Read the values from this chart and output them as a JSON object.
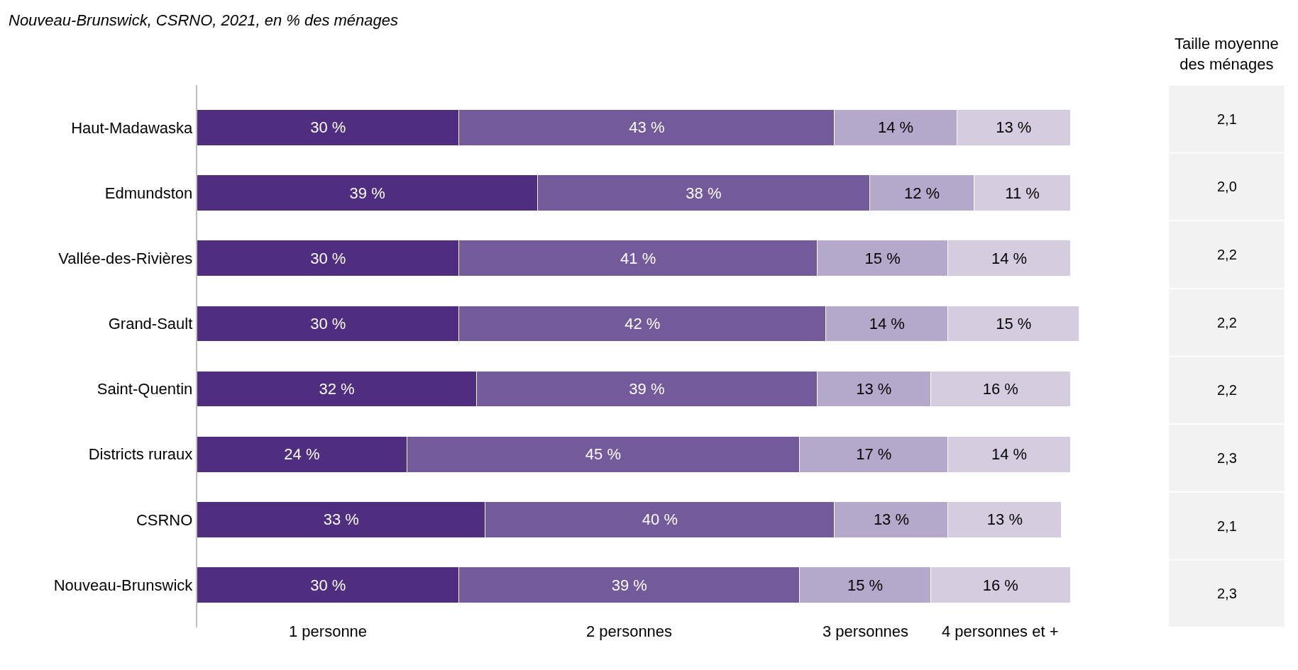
{
  "chart_data": [
    {
      "type": "bar",
      "orientation": "horizontal",
      "stacked": true,
      "subtitle": "Nouveau-Brunswick, CSRNO, 2021, en % des ménages",
      "legend": false,
      "categories": [
        "Haut-Madawaska",
        "Edmundston",
        "Vallée-des-Rivières",
        "Grand-Sault",
        "Saint-Quentin",
        "Districts ruraux",
        "CSRNO",
        "Nouveau-Brunswick"
      ],
      "series": [
        {
          "name": "1 personne",
          "color": "#4f2d7f",
          "values": [
            30,
            39,
            30,
            30,
            32,
            24,
            33,
            30
          ],
          "value_labels": [
            "30 %",
            "39 %",
            "30 %",
            "30 %",
            "32 %",
            "24 %",
            "33 %",
            "30 %"
          ]
        },
        {
          "name": "2 personnes",
          "color": "#735a9a",
          "values": [
            43,
            38,
            41,
            42,
            39,
            45,
            40,
            39
          ],
          "value_labels": [
            "43 %",
            "38 %",
            "41 %",
            "42 %",
            "39 %",
            "45 %",
            "40 %",
            "39 %"
          ]
        },
        {
          "name": "3 personnes",
          "color": "#b6a8cb",
          "values": [
            14,
            12,
            15,
            14,
            13,
            17,
            13,
            15
          ],
          "value_labels": [
            "14 %",
            "12 %",
            "15 %",
            "14 %",
            "13 %",
            "17 %",
            "13 %",
            "15 %"
          ]
        },
        {
          "name": "4 personnes et +",
          "color": "#d5cce0",
          "values": [
            13,
            11,
            14,
            15,
            16,
            14,
            13,
            16
          ],
          "value_labels": [
            "13 %",
            "11 %",
            "14 %",
            "15 %",
            "16 %",
            "14 %",
            "13 %",
            "16 %"
          ]
        }
      ]
    },
    {
      "type": "other",
      "title": "Taille moyenne des ménages",
      "color": "#f2f2f2",
      "annotations": [
        "2,1",
        "2,0",
        "2,2",
        "2,2",
        "2,2",
        "2,3",
        "2,1",
        "2,3"
      ]
    }
  ]
}
